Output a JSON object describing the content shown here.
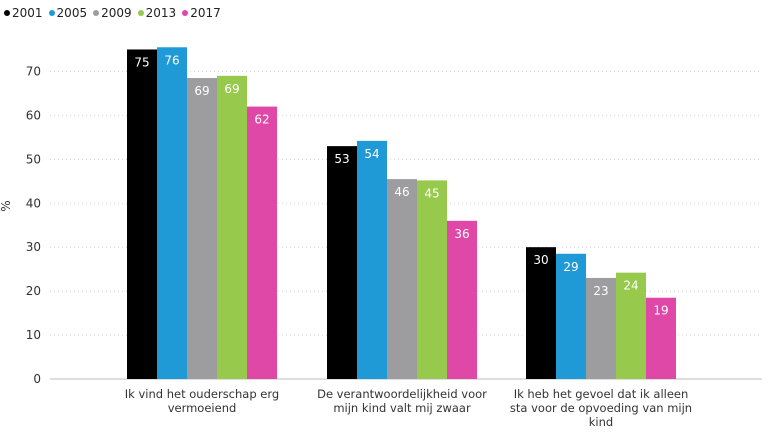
{
  "chart_data": {
    "type": "bar",
    "ylabel": "%",
    "ylim": [
      0,
      80
    ],
    "yticks": [
      0,
      10,
      20,
      30,
      40,
      50,
      60,
      70
    ],
    "grid": true,
    "legend_position": "top-left",
    "categories": [
      [
        "Ik vind het ouderschap erg",
        "vermoeiend"
      ],
      [
        "De verantwoordelijkheid voor",
        "mijn kind valt mij zwaar"
      ],
      [
        "Ik heb het gevoel dat ik alleen",
        "sta voor de opvoeding van mijn",
        "kind"
      ]
    ],
    "series": [
      {
        "name": "2001",
        "color": "#000000",
        "values": [
          75,
          53,
          30
        ],
        "labels": [
          "75",
          "53",
          "30"
        ]
      },
      {
        "name": "2005",
        "color": "#1f9ad6",
        "values": [
          75.5,
          54.2,
          28.5
        ],
        "labels": [
          "76",
          "54",
          "29"
        ]
      },
      {
        "name": "2009",
        "color": "#9d9d9f",
        "values": [
          68.5,
          45.5,
          23
        ],
        "labels": [
          "69",
          "46",
          "23"
        ]
      },
      {
        "name": "2013",
        "color": "#97c94c",
        "values": [
          69,
          45.2,
          24.2
        ],
        "labels": [
          "69",
          "45",
          "24"
        ]
      },
      {
        "name": "2017",
        "color": "#e048a8",
        "values": [
          62,
          36,
          18.5
        ],
        "labels": [
          "62",
          "36",
          "19"
        ]
      }
    ]
  }
}
